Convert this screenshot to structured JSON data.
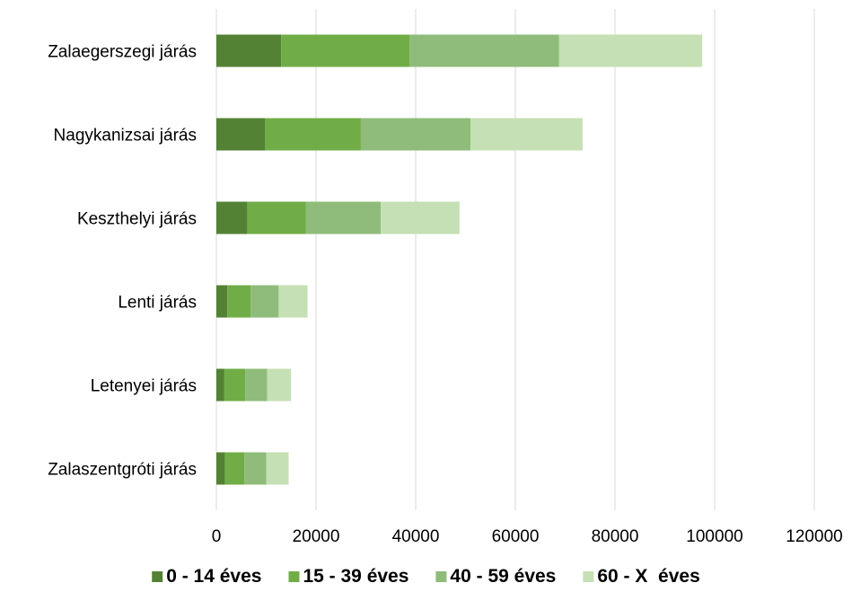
{
  "chart_data": {
    "type": "bar",
    "orientation": "horizontal",
    "stacked": true,
    "categories": [
      "Zalaegerszegi járás",
      "Nagykanizsai járás",
      "Keszthelyi járás",
      "Lenti járás",
      "Letenyei járás",
      "Zalaszentgróti járás"
    ],
    "series": [
      {
        "name": "0 - 14 éves",
        "color": "#548235",
        "values": [
          13000,
          9800,
          6200,
          2200,
          1600,
          1700
        ]
      },
      {
        "name": "15 - 39 éves",
        "color": "#70ad47",
        "values": [
          25800,
          19200,
          11800,
          4700,
          4200,
          3900
        ]
      },
      {
        "name": "40 - 59 éves",
        "color": "#8fbc7a",
        "values": [
          30000,
          22000,
          15000,
          5600,
          4400,
          4400
        ]
      },
      {
        "name": "60 - X  éves",
        "color": "#c5e0b4",
        "values": [
          28700,
          22500,
          15800,
          5800,
          4800,
          4500
        ]
      }
    ],
    "xlim": [
      0,
      120000
    ],
    "xticks": [
      "0",
      "20000",
      "40000",
      "60000",
      "80000",
      "100000",
      "120000"
    ],
    "grid": true,
    "legend_position": "bottom",
    "title": "",
    "xlabel": "",
    "ylabel": ""
  }
}
